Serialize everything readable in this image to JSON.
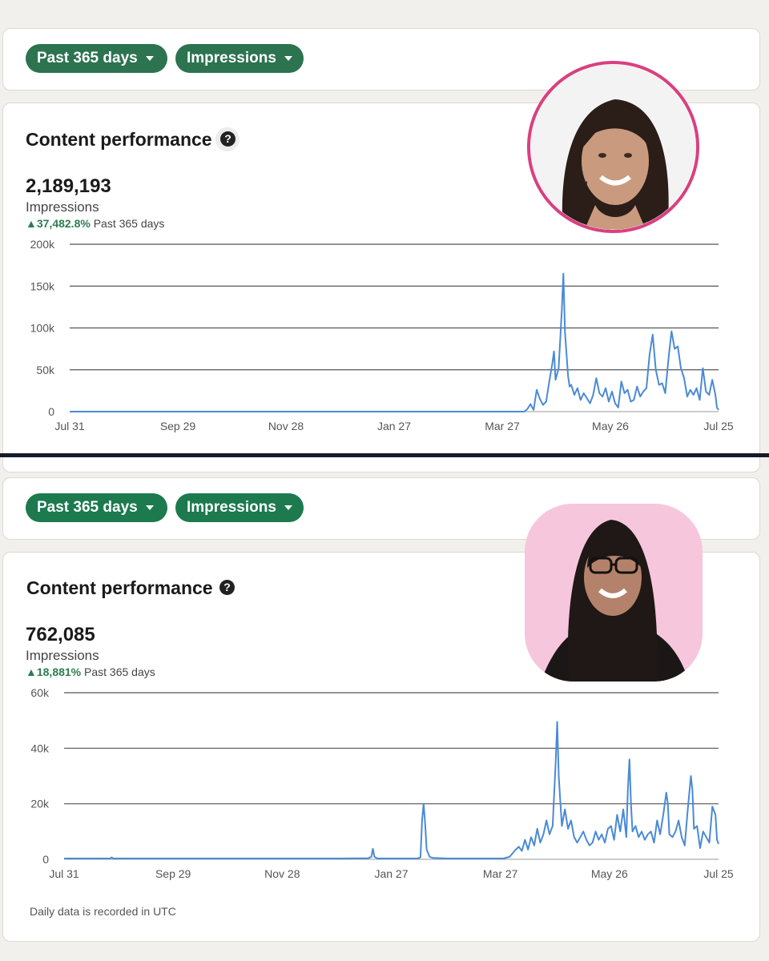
{
  "panels": [
    {
      "filters": {
        "range_label": "Past 365 days",
        "metric_label": "Impressions"
      },
      "title": "Content performance",
      "help_glyph": "?",
      "total": "2,189,193",
      "metric": "Impressions",
      "change_pct": "37,482.8%",
      "change_period": "Past 365 days"
    },
    {
      "filters": {
        "range_label": "Past 365 days",
        "metric_label": "Impressions"
      },
      "title": "Content performance",
      "help_glyph": "?",
      "total": "762,085",
      "metric": "Impressions",
      "change_pct": "18,881%",
      "change_period": "Past 365 days",
      "footnote": "Daily data is recorded in UTC"
    }
  ],
  "colors": {
    "line": "#4a8ad6",
    "pill_top": "#2c7350",
    "pill_bottom": "#1c7a4e",
    "positive": "#2e7d52",
    "avatar_ring": "#d9407f",
    "avatar_bg_bottom": "#f6c6dc"
  },
  "icons": {
    "dropdown": "caret-down-icon",
    "help": "question-circle-icon",
    "trend": "triangle-up-icon"
  },
  "chart_data": [
    {
      "type": "line",
      "x_tick_labels": [
        "Jul 31",
        "Sep 29",
        "Nov 28",
        "Jan 27",
        "Mar 27",
        "May 26",
        "Jul 25"
      ],
      "y_tick_labels": [
        "0",
        "50k",
        "100k",
        "150k",
        "200k"
      ],
      "ylim": [
        0,
        200000
      ],
      "grid": true,
      "series": [
        {
          "values": [
            [
              0,
              0
            ],
            [
              290,
              0
            ],
            [
              292,
              3000
            ],
            [
              294,
              9000
            ],
            [
              296,
              2000
            ],
            [
              298,
              26000
            ],
            [
              300,
              15000
            ],
            [
              302,
              8000
            ],
            [
              304,
              12000
            ],
            [
              306,
              36000
            ],
            [
              308,
              58000
            ],
            [
              309,
              72000
            ],
            [
              310,
              38000
            ],
            [
              312,
              52000
            ],
            [
              314,
              120000
            ],
            [
              315,
              165000
            ],
            [
              316,
              95000
            ],
            [
              318,
              42000
            ],
            [
              319,
              30000
            ],
            [
              320,
              32000
            ],
            [
              322,
              20000
            ],
            [
              324,
              28000
            ],
            [
              326,
              14000
            ],
            [
              328,
              22000
            ],
            [
              330,
              16000
            ],
            [
              332,
              10000
            ],
            [
              334,
              20000
            ],
            [
              336,
              40000
            ],
            [
              338,
              22000
            ],
            [
              340,
              18000
            ],
            [
              342,
              28000
            ],
            [
              344,
              12000
            ],
            [
              346,
              24000
            ],
            [
              348,
              10000
            ],
            [
              350,
              5000
            ],
            [
              352,
              36000
            ],
            [
              354,
              22000
            ],
            [
              356,
              26000
            ],
            [
              358,
              12000
            ],
            [
              360,
              14000
            ],
            [
              362,
              30000
            ],
            [
              364,
              18000
            ],
            [
              366,
              24000
            ],
            [
              368,
              28000
            ],
            [
              370,
              68000
            ],
            [
              372,
              92000
            ],
            [
              374,
              50000
            ],
            [
              376,
              32000
            ],
            [
              378,
              34000
            ],
            [
              380,
              22000
            ],
            [
              382,
              62000
            ],
            [
              384,
              96000
            ],
            [
              386,
              75000
            ],
            [
              388,
              78000
            ],
            [
              390,
              52000
            ],
            [
              392,
              40000
            ],
            [
              394,
              18000
            ],
            [
              396,
              26000
            ],
            [
              398,
              20000
            ],
            [
              400,
              28000
            ],
            [
              402,
              14000
            ],
            [
              404,
              52000
            ],
            [
              406,
              24000
            ],
            [
              408,
              20000
            ],
            [
              410,
              38000
            ],
            [
              412,
              20000
            ],
            [
              413,
              5000
            ],
            [
              414,
              2000
            ]
          ]
        }
      ]
    },
    {
      "type": "line",
      "x_tick_labels": [
        "Jul 31",
        "Sep 29",
        "Nov 28",
        "Jan 27",
        "Mar 27",
        "May 26",
        "Jul 25"
      ],
      "y_tick_labels": [
        "0",
        "20k",
        "40k",
        "60k"
      ],
      "ylim": [
        0,
        60000
      ],
      "grid": true,
      "series": [
        {
          "values": [
            [
              0,
              300
            ],
            [
              30,
              300
            ],
            [
              31,
              700
            ],
            [
              32,
              300
            ],
            [
              100,
              300
            ],
            [
              150,
              300
            ],
            [
              180,
              300
            ],
            [
              198,
              400
            ],
            [
              200,
              900
            ],
            [
              201,
              3800
            ],
            [
              202,
              900
            ],
            [
              204,
              300
            ],
            [
              230,
              300
            ],
            [
              232,
              700
            ],
            [
              233,
              14000
            ],
            [
              234,
              20000
            ],
            [
              235,
              13000
            ],
            [
              236,
              3500
            ],
            [
              238,
              900
            ],
            [
              240,
              500
            ],
            [
              250,
              300
            ],
            [
              286,
              300
            ],
            [
              290,
              900
            ],
            [
              292,
              2200
            ],
            [
              294,
              3500
            ],
            [
              296,
              4500
            ],
            [
              298,
              3000
            ],
            [
              300,
              7000
            ],
            [
              302,
              3500
            ],
            [
              304,
              8000
            ],
            [
              306,
              5000
            ],
            [
              308,
              11000
            ],
            [
              310,
              6000
            ],
            [
              312,
              9000
            ],
            [
              314,
              14000
            ],
            [
              316,
              9000
            ],
            [
              318,
              12000
            ],
            [
              320,
              35000
            ],
            [
              321,
              49500
            ],
            [
              322,
              30000
            ],
            [
              324,
              12000
            ],
            [
              326,
              18000
            ],
            [
              328,
              11000
            ],
            [
              330,
              14000
            ],
            [
              332,
              8000
            ],
            [
              334,
              6000
            ],
            [
              336,
              8000
            ],
            [
              338,
              10000
            ],
            [
              340,
              7000
            ],
            [
              342,
              5000
            ],
            [
              344,
              6000
            ],
            [
              346,
              10000
            ],
            [
              348,
              7000
            ],
            [
              350,
              9000
            ],
            [
              352,
              6000
            ],
            [
              354,
              11000
            ],
            [
              356,
              12000
            ],
            [
              358,
              7000
            ],
            [
              360,
              16000
            ],
            [
              362,
              10000
            ],
            [
              364,
              18000
            ],
            [
              366,
              8000
            ],
            [
              367,
              25000
            ],
            [
              368,
              36000
            ],
            [
              369,
              20000
            ],
            [
              370,
              10000
            ],
            [
              372,
              12000
            ],
            [
              374,
              8000
            ],
            [
              376,
              10000
            ],
            [
              378,
              7000
            ],
            [
              380,
              9000
            ],
            [
              382,
              10000
            ],
            [
              384,
              6000
            ],
            [
              386,
              14000
            ],
            [
              388,
              9000
            ],
            [
              390,
              16000
            ],
            [
              392,
              24000
            ],
            [
              393,
              20000
            ],
            [
              394,
              9000
            ],
            [
              396,
              8000
            ],
            [
              398,
              10000
            ],
            [
              400,
              14000
            ],
            [
              402,
              8000
            ],
            [
              404,
              5000
            ],
            [
              406,
              18000
            ],
            [
              408,
              30000
            ],
            [
              409,
              25000
            ],
            [
              410,
              11000
            ],
            [
              412,
              12000
            ],
            [
              414,
              4000
            ],
            [
              416,
              10000
            ],
            [
              418,
              8000
            ],
            [
              420,
              6000
            ],
            [
              422,
              19000
            ],
            [
              424,
              16000
            ],
            [
              425,
              7000
            ],
            [
              426,
              5500
            ]
          ]
        }
      ]
    }
  ]
}
